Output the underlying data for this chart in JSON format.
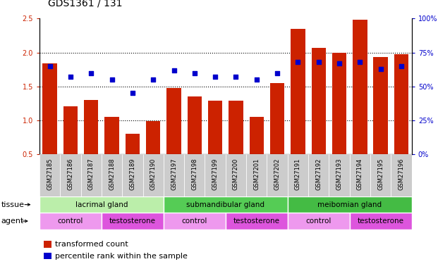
{
  "title": "GDS1361 / 131",
  "samples": [
    "GSM27185",
    "GSM27186",
    "GSM27187",
    "GSM27188",
    "GSM27189",
    "GSM27190",
    "GSM27197",
    "GSM27198",
    "GSM27199",
    "GSM27200",
    "GSM27201",
    "GSM27202",
    "GSM27191",
    "GSM27192",
    "GSM27193",
    "GSM27194",
    "GSM27195",
    "GSM27196"
  ],
  "transformed_count": [
    1.84,
    1.21,
    1.3,
    1.05,
    0.8,
    0.99,
    1.48,
    1.35,
    1.29,
    1.29,
    1.05,
    1.55,
    2.35,
    2.07,
    2.0,
    2.48,
    1.93,
    1.97
  ],
  "percentile_rank": [
    65,
    57,
    60,
    55,
    45,
    55,
    62,
    60,
    57,
    57,
    55,
    60,
    68,
    68,
    67,
    68,
    63,
    65
  ],
  "bar_color": "#cc2200",
  "dot_color": "#0000cc",
  "ylim_left": [
    0.5,
    2.5
  ],
  "ylim_right": [
    0,
    100
  ],
  "yticks_left": [
    0.5,
    1.0,
    1.5,
    2.0,
    2.5
  ],
  "yticks_right": [
    0,
    25,
    50,
    75,
    100
  ],
  "ytick_labels_right": [
    "0%",
    "25%",
    "50%",
    "75%",
    "100%"
  ],
  "hlines": [
    1.0,
    1.5,
    2.0
  ],
  "tissue_groups": [
    {
      "label": "lacrimal gland",
      "start": 0,
      "end": 6,
      "color": "#bbeeaa"
    },
    {
      "label": "submandibular gland",
      "start": 6,
      "end": 12,
      "color": "#55cc55"
    },
    {
      "label": "meibomian gland",
      "start": 12,
      "end": 18,
      "color": "#44bb44"
    }
  ],
  "agent_groups": [
    {
      "label": "control",
      "start": 0,
      "end": 3,
      "color": "#ee99ee"
    },
    {
      "label": "testosterone",
      "start": 3,
      "end": 6,
      "color": "#dd55dd"
    },
    {
      "label": "control",
      "start": 6,
      "end": 9,
      "color": "#ee99ee"
    },
    {
      "label": "testosterone",
      "start": 9,
      "end": 12,
      "color": "#dd55dd"
    },
    {
      "label": "control",
      "start": 12,
      "end": 15,
      "color": "#ee99ee"
    },
    {
      "label": "testosterone",
      "start": 15,
      "end": 18,
      "color": "#dd55dd"
    }
  ],
  "legend_items": [
    {
      "label": "transformed count",
      "color": "#cc2200"
    },
    {
      "label": "percentile rank within the sample",
      "color": "#0000cc"
    }
  ],
  "tissue_row_label": "tissue",
  "agent_row_label": "agent",
  "tick_fontsize": 7,
  "legend_fontsize": 8,
  "bar_bottom": 0.5
}
